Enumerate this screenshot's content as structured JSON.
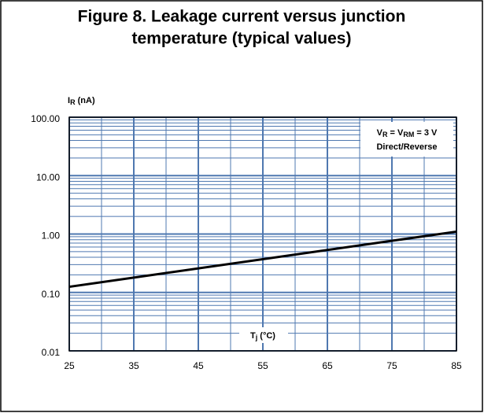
{
  "chart_data": {
    "type": "line",
    "title": [
      "Figure 8. Leakage current versus junction",
      "temperature (typical values)"
    ],
    "y_label": {
      "main": "I",
      "sub": "R",
      "rest": " (nA)"
    },
    "x_label": {
      "main": "T",
      "sub": "j",
      "rest": " (°C)"
    },
    "annotation": [
      {
        "parts": [
          "V",
          "R",
          " = V",
          "RM",
          " = 3 V"
        ]
      },
      {
        "parts": [
          "Direct/Reverse"
        ]
      }
    ],
    "x": [
      25,
      85
    ],
    "series": [
      {
        "name": "Leakage current",
        "color": "#000000",
        "values": [
          0.125,
          1.1
        ]
      }
    ],
    "xlim": [
      25,
      85
    ],
    "xticks": [
      25,
      35,
      45,
      55,
      65,
      75,
      85
    ],
    "ylim": [
      0.01,
      100
    ],
    "yticks": [
      0.01,
      {
        "value": 0.1,
        "label": "0.10"
      },
      {
        "value": 1,
        "label": "1.00"
      },
      {
        "value": 10,
        "label": "10.00"
      },
      {
        "value": 100,
        "label": "100.00"
      }
    ],
    "ylog": true,
    "grid": true,
    "minor_grid": true,
    "grid_color": "#4f78b0"
  }
}
